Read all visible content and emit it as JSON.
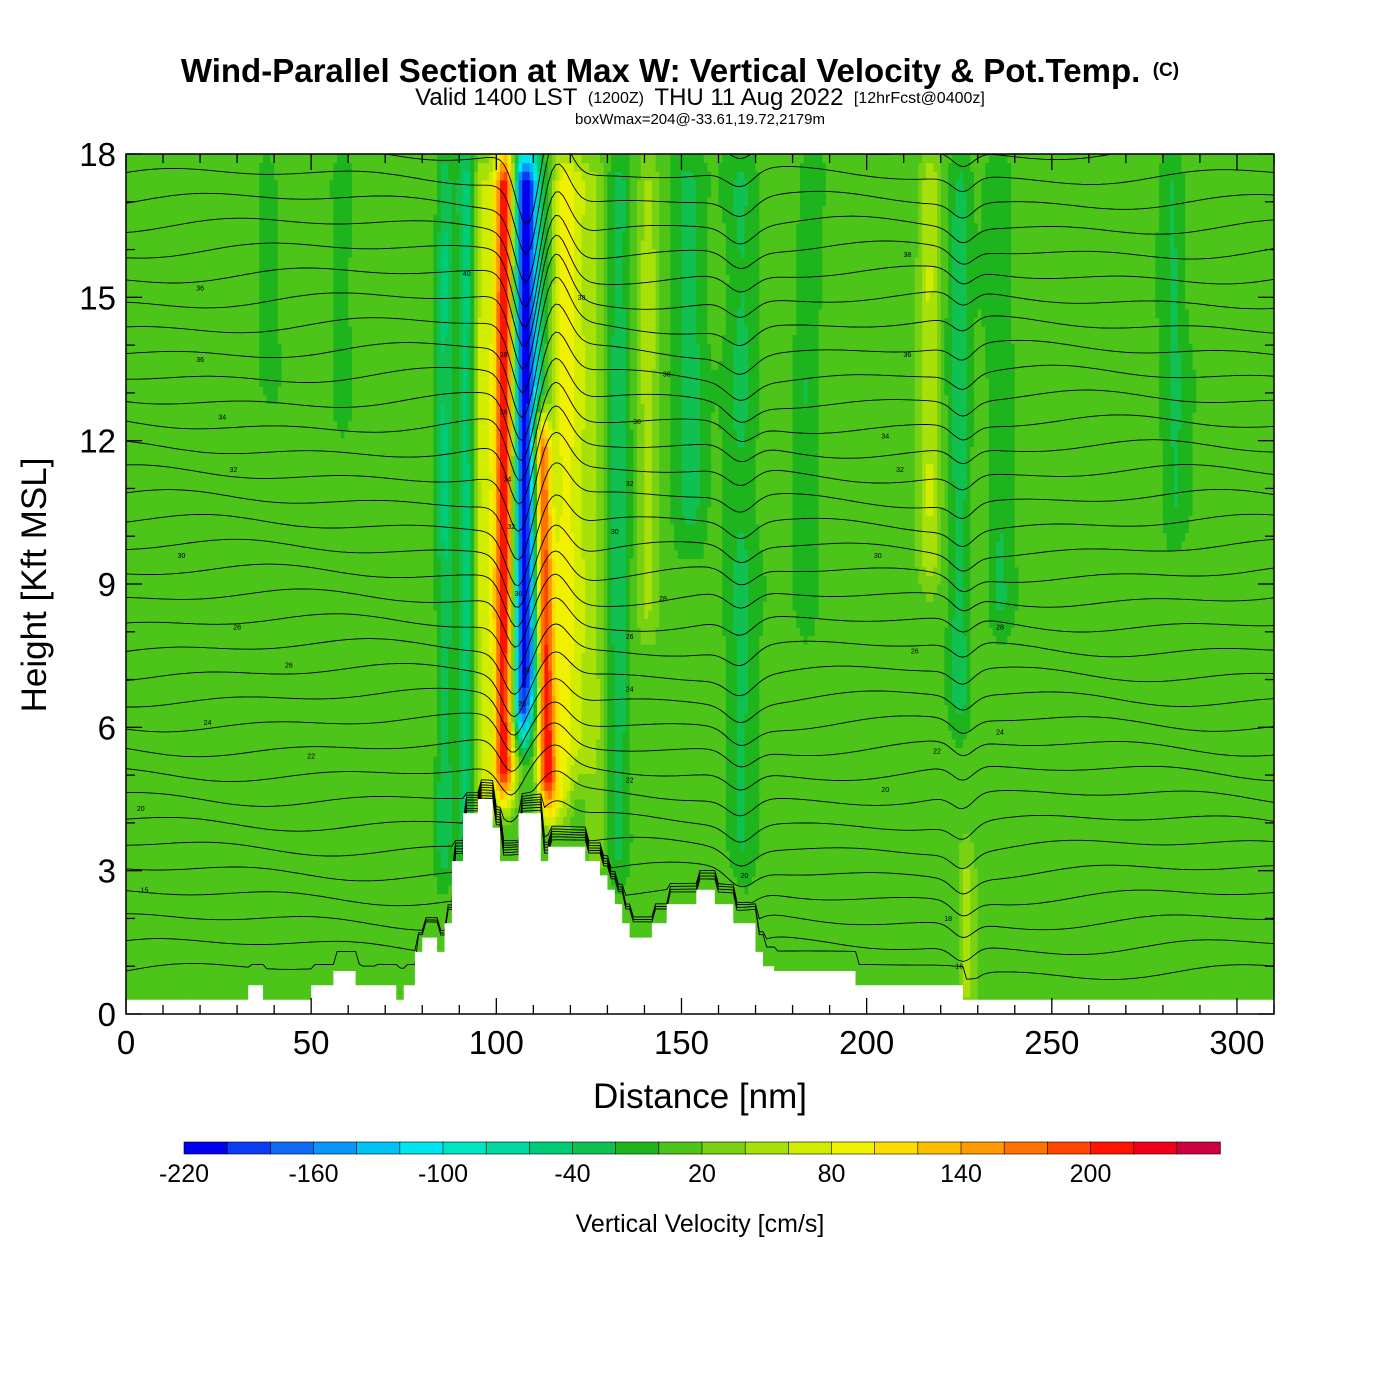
{
  "chart_data": {
    "type": "heatmap",
    "title": "Wind-Parallel Section at Max W: Vertical Velocity & Pot.Temp.",
    "title_suffix": "(C)",
    "subtitle_parts": [
      "Valid 1400 LST",
      "(1200Z)",
      "THU 11 Aug 2022",
      "[12hrFcst@0400z]"
    ],
    "annotation": "boxWmax=204@-33.61,19.72,2179m",
    "xlabel": "Distance [nm]",
    "ylabel": "Height [Kft MSL]",
    "xlim": [
      0,
      310
    ],
    "ylim": [
      0,
      18
    ],
    "x_ticks": [
      0,
      50,
      100,
      150,
      200,
      250,
      300
    ],
    "x_tick_labels": [
      "0",
      "50",
      "100",
      "150",
      "200",
      "250",
      "300"
    ],
    "y_ticks": [
      0,
      3,
      6,
      9,
      12,
      15,
      18
    ],
    "y_tick_labels": [
      "0",
      "3",
      "6",
      "9",
      "12",
      "15",
      "18"
    ],
    "colorbar": {
      "label": "Vertical Velocity [cm/s]",
      "min": -220,
      "max": 240,
      "step": 20,
      "tick_values": [
        -220,
        -160,
        -100,
        -40,
        20,
        80,
        140,
        200
      ],
      "tick_labels": [
        "-220",
        "-160",
        "-100",
        "-40",
        "20",
        "80",
        "140",
        "200"
      ],
      "colors": [
        "#0000ee",
        "#0a3cf5",
        "#0f6af2",
        "#0a96f8",
        "#00c3f5",
        "#00e6f0",
        "#00e6c2",
        "#00d8a0",
        "#00cc78",
        "#10c050",
        "#1eb41e",
        "#4cc41a",
        "#78d212",
        "#a8e10a",
        "#d2ec00",
        "#f0f000",
        "#ffdc00",
        "#ffbe00",
        "#ff9b00",
        "#ff7300",
        "#ff4600",
        "#ff1400",
        "#ee0018",
        "#cc0040"
      ]
    },
    "velocity_features": [
      {
        "x": 102,
        "width": 3.0,
        "value": 210,
        "ybot": 4.5,
        "ytop": 18,
        "tilt": 0.02
      },
      {
        "x": 107,
        "width": 2.8,
        "value": -200,
        "ybot": 5.8,
        "ytop": 18,
        "tilt": 0.015
      },
      {
        "x": 114,
        "width": 2.5,
        "value": 200,
        "ybot": 4.3,
        "ytop": 12.5,
        "tilt": -0.25
      },
      {
        "x": 110,
        "width": 2.5,
        "value": -90,
        "ybot": 6.5,
        "ytop": 18,
        "tilt": 0.0
      },
      {
        "x": 96,
        "width": 2.5,
        "value": 60,
        "ybot": 0,
        "ytop": 18,
        "tilt": 0
      },
      {
        "x": 92,
        "width": 2.5,
        "value": -60,
        "ybot": 3,
        "ytop": 18,
        "tilt": 0
      },
      {
        "x": 86,
        "width": 2.0,
        "value": -50,
        "ybot": 3,
        "ytop": 18,
        "tilt": 0
      },
      {
        "x": 118,
        "width": 3.0,
        "value": 60,
        "ybot": 4,
        "ytop": 18,
        "tilt": 0
      },
      {
        "x": 122,
        "width": 4.0,
        "value": 50,
        "ybot": 5,
        "ytop": 18,
        "tilt": 0
      },
      {
        "x": 127,
        "width": 3.0,
        "value": 25,
        "ybot": 3,
        "ytop": 18,
        "tilt": 0
      },
      {
        "x": 133,
        "width": 3.0,
        "value": -40,
        "ybot": 3,
        "ytop": 18,
        "tilt": 0
      },
      {
        "x": 141,
        "width": 3.0,
        "value": 40,
        "ybot": 8,
        "ytop": 18,
        "tilt": 0
      },
      {
        "x": 152,
        "width": 4.0,
        "value": -35,
        "ybot": 10,
        "ytop": 18,
        "tilt": 0
      },
      {
        "x": 166,
        "width": 4.0,
        "value": -30,
        "ybot": 3,
        "ytop": 18,
        "tilt": 0
      },
      {
        "x": 184,
        "width": 3.0,
        "value": -25,
        "ybot": 8,
        "ytop": 18,
        "tilt": 0
      },
      {
        "x": 217,
        "width": 3.0,
        "value": 50,
        "ybot": 9,
        "ytop": 18,
        "tilt": 0
      },
      {
        "x": 225,
        "width": 3.0,
        "value": -40,
        "ybot": 6,
        "ytop": 18,
        "tilt": 0
      },
      {
        "x": 227,
        "width": 2.5,
        "value": 40,
        "ybot": 0,
        "ytop": 3.5,
        "tilt": 0
      },
      {
        "x": 236,
        "width": 3.5,
        "value": -30,
        "ybot": 8,
        "ytop": 18,
        "tilt": 0
      },
      {
        "x": 283,
        "width": 3.5,
        "value": -30,
        "ybot": 10,
        "ytop": 18,
        "tilt": 0
      },
      {
        "x": 38,
        "width": 3.0,
        "value": -25,
        "ybot": 13,
        "ytop": 18,
        "tilt": 0
      },
      {
        "x": 58,
        "width": 3.0,
        "value": -20,
        "ybot": 12,
        "ytop": 18,
        "tilt": 0
      }
    ],
    "theta_levels_C": [
      15,
      16,
      18,
      20,
      22,
      24,
      26,
      28,
      30,
      32,
      34,
      36,
      38,
      40
    ],
    "theta_labels": [
      {
        "x": 5,
        "y": 2.6,
        "text": "15"
      },
      {
        "x": 4,
        "y": 4.3,
        "text": "20"
      },
      {
        "x": 22,
        "y": 6.1,
        "text": "24"
      },
      {
        "x": 50,
        "y": 5.4,
        "text": "22"
      },
      {
        "x": 44,
        "y": 7.3,
        "text": "26"
      },
      {
        "x": 30,
        "y": 8.1,
        "text": "28"
      },
      {
        "x": 15,
        "y": 9.6,
        "text": "30"
      },
      {
        "x": 29,
        "y": 11.4,
        "text": "32"
      },
      {
        "x": 26,
        "y": 12.5,
        "text": "34"
      },
      {
        "x": 20,
        "y": 13.7,
        "text": "36"
      },
      {
        "x": 20,
        "y": 15.2,
        "text": "36"
      },
      {
        "x": 92,
        "y": 15.5,
        "text": "40"
      },
      {
        "x": 102,
        "y": 13.8,
        "text": "38"
      },
      {
        "x": 102,
        "y": 12.6,
        "text": "36"
      },
      {
        "x": 103,
        "y": 11.2,
        "text": "34"
      },
      {
        "x": 104,
        "y": 10.2,
        "text": "32"
      },
      {
        "x": 106,
        "y": 8.8,
        "text": "30"
      },
      {
        "x": 108,
        "y": 7.2,
        "text": "28"
      },
      {
        "x": 107,
        "y": 6.5,
        "text": "26"
      },
      {
        "x": 123,
        "y": 15.0,
        "text": "38"
      },
      {
        "x": 146,
        "y": 13.4,
        "text": "38"
      },
      {
        "x": 138,
        "y": 12.4,
        "text": "36"
      },
      {
        "x": 136,
        "y": 11.1,
        "text": "32"
      },
      {
        "x": 132,
        "y": 10.1,
        "text": "30"
      },
      {
        "x": 145,
        "y": 8.7,
        "text": "28"
      },
      {
        "x": 136,
        "y": 7.9,
        "text": "26"
      },
      {
        "x": 136,
        "y": 6.8,
        "text": "24"
      },
      {
        "x": 136,
        "y": 4.9,
        "text": "22"
      },
      {
        "x": 167,
        "y": 2.9,
        "text": "20"
      },
      {
        "x": 211,
        "y": 15.9,
        "text": "38"
      },
      {
        "x": 211,
        "y": 13.8,
        "text": "36"
      },
      {
        "x": 205,
        "y": 12.1,
        "text": "34"
      },
      {
        "x": 209,
        "y": 11.4,
        "text": "32"
      },
      {
        "x": 203,
        "y": 9.6,
        "text": "30"
      },
      {
        "x": 236,
        "y": 8.1,
        "text": "28"
      },
      {
        "x": 213,
        "y": 7.6,
        "text": "26"
      },
      {
        "x": 236,
        "y": 5.9,
        "text": "24"
      },
      {
        "x": 219,
        "y": 5.5,
        "text": "22"
      },
      {
        "x": 205,
        "y": 4.7,
        "text": "20"
      },
      {
        "x": 222,
        "y": 2.0,
        "text": "18"
      },
      {
        "x": 225,
        "y": 1.0,
        "text": "16"
      }
    ],
    "terrain_kft": [
      [
        0,
        0.3
      ],
      [
        33,
        0.3
      ],
      [
        33,
        0.6
      ],
      [
        37,
        0.6
      ],
      [
        37,
        0.3
      ],
      [
        50,
        0.3
      ],
      [
        50,
        0.6
      ],
      [
        56,
        0.6
      ],
      [
        56,
        0.9
      ],
      [
        62,
        0.9
      ],
      [
        62,
        0.6
      ],
      [
        73,
        0.6
      ],
      [
        73,
        0.3
      ],
      [
        75,
        0.3
      ],
      [
        75,
        0.6
      ],
      [
        78,
        0.6
      ],
      [
        78,
        1.3
      ],
      [
        80,
        1.3
      ],
      [
        80,
        1.6
      ],
      [
        84,
        1.6
      ],
      [
        84,
        1.3
      ],
      [
        86,
        1.3
      ],
      [
        86,
        1.9
      ],
      [
        88,
        1.9
      ],
      [
        88,
        3.2
      ],
      [
        91,
        3.2
      ],
      [
        91,
        4.2
      ],
      [
        95,
        4.2
      ],
      [
        95,
        4.5
      ],
      [
        99,
        4.5
      ],
      [
        99,
        3.9
      ],
      [
        101,
        3.9
      ],
      [
        101,
        3.2
      ],
      [
        106,
        3.2
      ],
      [
        106,
        4.2
      ],
      [
        112,
        4.2
      ],
      [
        112,
        3.2
      ],
      [
        114,
        3.2
      ],
      [
        114,
        3.5
      ],
      [
        124,
        3.5
      ],
      [
        124,
        3.2
      ],
      [
        128,
        3.2
      ],
      [
        128,
        2.9
      ],
      [
        130,
        2.9
      ],
      [
        130,
        2.6
      ],
      [
        132,
        2.6
      ],
      [
        132,
        2.3
      ],
      [
        134,
        2.3
      ],
      [
        134,
        1.9
      ],
      [
        136,
        1.9
      ],
      [
        136,
        1.6
      ],
      [
        142,
        1.6
      ],
      [
        142,
        1.9
      ],
      [
        146,
        1.9
      ],
      [
        146,
        2.3
      ],
      [
        154,
        2.3
      ],
      [
        154,
        2.6
      ],
      [
        159,
        2.6
      ],
      [
        159,
        2.3
      ],
      [
        164,
        2.3
      ],
      [
        164,
        1.9
      ],
      [
        170,
        1.9
      ],
      [
        170,
        1.3
      ],
      [
        172,
        1.3
      ],
      [
        172,
        1.0
      ],
      [
        175,
        1.0
      ],
      [
        175,
        0.9
      ],
      [
        197,
        0.9
      ],
      [
        197,
        0.6
      ],
      [
        226,
        0.6
      ],
      [
        226,
        0.3
      ],
      [
        310,
        0.3
      ]
    ]
  }
}
